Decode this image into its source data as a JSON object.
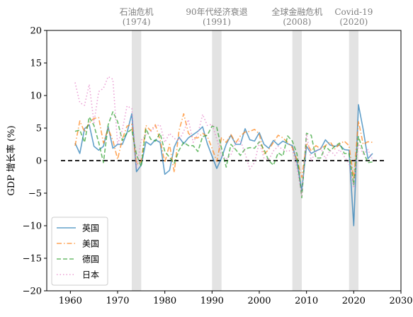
{
  "chart_data": {
    "type": "line",
    "ylabel": "GDP 增长率 (%)",
    "xlim": [
      1955,
      2030
    ],
    "ylim": [
      -20,
      20
    ],
    "xticks": [
      1960,
      1970,
      1980,
      1990,
      2000,
      2010,
      2020,
      2030
    ],
    "yticks": [
      -20,
      -15,
      -10,
      -5,
      0,
      5,
      10,
      15,
      20
    ],
    "zero_line": {
      "y": 0,
      "x_start": 1958,
      "x_end": 2027,
      "style": "dashed",
      "color": "#000000"
    },
    "recessions": [
      {
        "label": "石油危机",
        "year_label": "(1974)",
        "start": 1973,
        "end": 1975
      },
      {
        "label": "90年代经济衰退",
        "year_label": "(1991)",
        "start": 1990,
        "end": 1992
      },
      {
        "label": "全球金融危机",
        "year_label": "(2008)",
        "start": 2007,
        "end": 2009
      },
      {
        "label": "Covid-19",
        "year_label": "(2020)",
        "start": 2019,
        "end": 2021
      }
    ],
    "legend_position": "lower-left",
    "grid": false,
    "x": [
      1961,
      1962,
      1963,
      1964,
      1965,
      1966,
      1967,
      1968,
      1969,
      1970,
      1971,
      1972,
      1973,
      1974,
      1975,
      1976,
      1977,
      1978,
      1979,
      1980,
      1981,
      1982,
      1983,
      1984,
      1985,
      1986,
      1987,
      1988,
      1989,
      1990,
      1991,
      1992,
      1993,
      1994,
      1995,
      1996,
      1997,
      1998,
      1999,
      2000,
      2001,
      2002,
      2003,
      2004,
      2005,
      2006,
      2007,
      2008,
      2009,
      2010,
      2011,
      2012,
      2013,
      2014,
      2015,
      2016,
      2017,
      2018,
      2019,
      2020,
      2021,
      2022,
      2023,
      2024
    ],
    "series": [
      {
        "name": "英国",
        "color": "#1f77b4",
        "dash": "solid",
        "values": [
          2.7,
          1.1,
          4.9,
          5.5,
          2.2,
          1.6,
          2.2,
          5.2,
          1.9,
          2.5,
          2.5,
          4.3,
          7.2,
          -1.7,
          -0.7,
          2.9,
          2.4,
          3.2,
          2.8,
          -2.1,
          -1.5,
          2.1,
          3.6,
          2.6,
          3.5,
          4.0,
          4.5,
          5.2,
          2.6,
          0.7,
          -1.2,
          0.4,
          2.5,
          3.9,
          2.5,
          2.5,
          4.9,
          3.2,
          3.0,
          4.3,
          2.5,
          1.9,
          3.1,
          2.4,
          3.0,
          2.6,
          2.3,
          -0.3,
          -4.6,
          2.2,
          1.1,
          1.5,
          1.8,
          3.2,
          2.4,
          2.2,
          2.4,
          1.7,
          1.6,
          -10.0,
          8.6,
          4.8,
          0.3,
          1.1
        ]
      },
      {
        "name": "美国",
        "color": "#ff7f0e",
        "dash": "dashdot",
        "values": [
          2.3,
          6.1,
          4.4,
          5.8,
          6.5,
          6.6,
          2.7,
          4.9,
          3.1,
          0.2,
          3.3,
          5.3,
          5.6,
          -0.5,
          -0.2,
          5.4,
          4.6,
          5.5,
          3.2,
          -0.3,
          2.5,
          -1.8,
          4.6,
          7.2,
          4.2,
          3.5,
          3.5,
          4.2,
          3.7,
          1.9,
          -0.1,
          3.5,
          2.8,
          4.0,
          2.7,
          3.8,
          4.4,
          4.5,
          4.8,
          4.1,
          1.0,
          1.7,
          2.8,
          3.9,
          3.5,
          2.8,
          2.0,
          0.1,
          -2.6,
          2.7,
          1.5,
          2.3,
          1.8,
          2.3,
          2.9,
          1.8,
          2.5,
          3.0,
          2.3,
          -2.8,
          6.1,
          2.5,
          2.9,
          2.8
        ]
      },
      {
        "name": "德国",
        "color": "#2ca02c",
        "dash": "dashed",
        "values": [
          4.5,
          4.7,
          2.8,
          6.7,
          5.4,
          2.8,
          -0.3,
          5.5,
          7.5,
          6.0,
          3.1,
          4.3,
          4.8,
          0.9,
          -0.9,
          4.9,
          3.3,
          3.0,
          4.2,
          1.4,
          0.5,
          -0.4,
          1.6,
          2.8,
          2.3,
          2.3,
          1.4,
          3.7,
          3.9,
          5.3,
          5.1,
          1.9,
          -1.0,
          2.5,
          1.7,
          0.8,
          1.8,
          2.0,
          1.9,
          2.9,
          1.7,
          0.0,
          -0.7,
          1.2,
          0.7,
          3.8,
          3.0,
          1.0,
          -5.7,
          4.2,
          3.9,
          0.4,
          0.4,
          2.2,
          1.5,
          2.2,
          2.7,
          1.1,
          1.1,
          -3.7,
          3.7,
          1.4,
          -0.3,
          -0.2
        ]
      },
      {
        "name": "日本",
        "color": "#e377c2",
        "dash": "dotted",
        "values": [
          12.0,
          8.9,
          8.5,
          11.7,
          5.8,
          10.6,
          11.1,
          12.9,
          12.5,
          2.5,
          4.7,
          8.4,
          8.0,
          -1.2,
          3.1,
          4.0,
          4.4,
          5.3,
          5.5,
          2.8,
          4.2,
          3.4,
          3.1,
          4.5,
          6.3,
          2.8,
          4.1,
          7.1,
          5.4,
          5.6,
          3.3,
          0.8,
          0.2,
          0.9,
          2.7,
          3.1,
          1.1,
          -1.3,
          -0.3,
          2.8,
          0.4,
          0.1,
          1.5,
          2.2,
          1.7,
          1.4,
          1.7,
          -1.1,
          -5.4,
          4.1,
          0.0,
          1.4,
          2.0,
          0.3,
          1.6,
          0.8,
          1.7,
          0.6,
          -0.4,
          -4.2,
          2.6,
          1.0,
          1.7,
          0.1
        ]
      }
    ]
  }
}
